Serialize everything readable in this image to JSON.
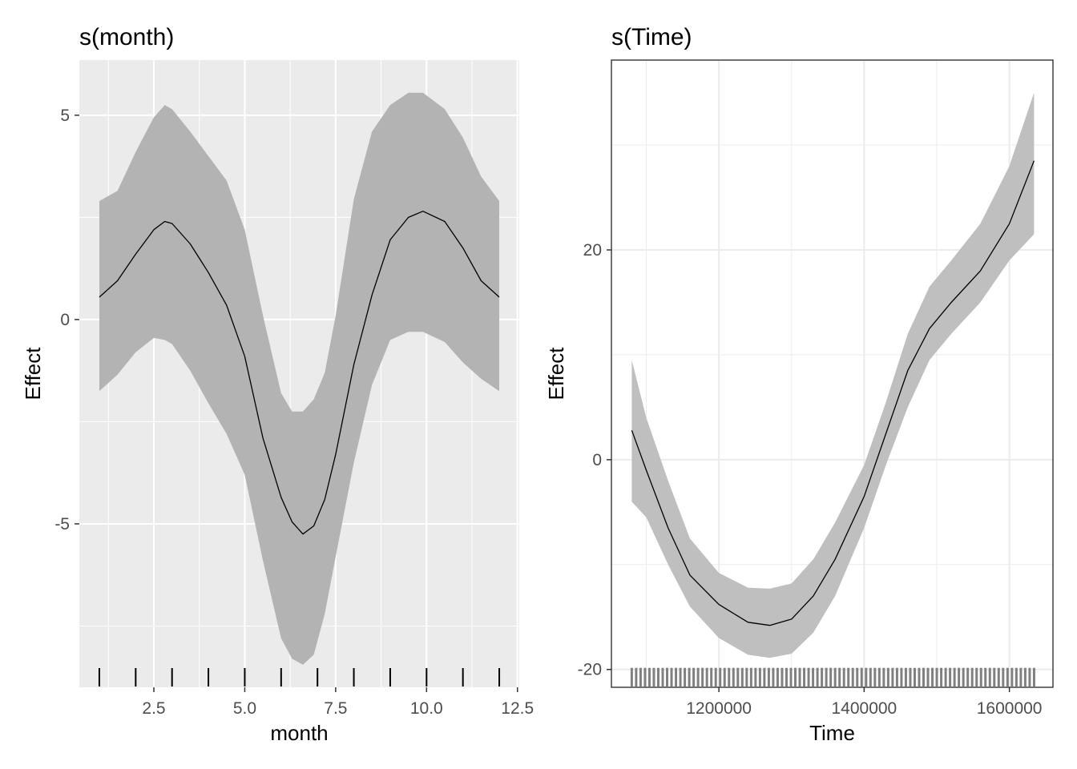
{
  "chart_data": [
    {
      "type": "line",
      "title": "s(month)",
      "xlabel": "month",
      "ylabel": "Effect",
      "xlim": [
        0.45,
        12.55
      ],
      "ylim": [
        -9.0,
        6.35
      ],
      "xticks": [
        2.5,
        5.0,
        7.5,
        10.0,
        12.5
      ],
      "xtick_labels": [
        "2.5",
        "5.0",
        "7.5",
        "10.0",
        "12.5"
      ],
      "yticks": [
        -5,
        0,
        5
      ],
      "ytick_labels": [
        "-5",
        "0",
        "5"
      ],
      "grid": true,
      "background": "gray",
      "colors": {
        "panel": "#ebebeb",
        "band": "#b3b3b3",
        "line": "#000000",
        "grid": "#ffffff"
      },
      "series": [
        {
          "x": [
            1,
            1.5,
            2,
            2.5,
            2.8,
            3,
            3.5,
            4,
            4.5,
            5,
            5.5,
            6,
            6.3,
            6.6,
            6.9,
            7.2,
            7.5,
            8,
            8.5,
            9,
            9.5,
            9.9,
            10.5,
            11,
            11.5,
            12
          ],
          "y": [
            0.55,
            0.95,
            1.6,
            2.2,
            2.4,
            2.35,
            1.85,
            1.15,
            0.35,
            -0.9,
            -2.9,
            -4.35,
            -4.95,
            -5.25,
            -5.05,
            -4.4,
            -3.3,
            -1.1,
            0.6,
            1.95,
            2.5,
            2.65,
            2.4,
            1.75,
            0.95,
            0.55
          ],
          "lower": [
            -1.75,
            -1.35,
            -0.8,
            -0.45,
            -0.5,
            -0.6,
            -1.25,
            -2.05,
            -2.8,
            -3.8,
            -5.9,
            -7.8,
            -8.3,
            -8.45,
            -8.2,
            -7.2,
            -5.8,
            -3.5,
            -1.6,
            -0.5,
            -0.3,
            -0.3,
            -0.55,
            -1.05,
            -1.45,
            -1.75
          ],
          "upper": [
            2.9,
            3.15,
            4.1,
            4.95,
            5.25,
            5.15,
            4.6,
            4.0,
            3.4,
            2.2,
            0.1,
            -1.8,
            -2.25,
            -2.25,
            -1.95,
            -1.3,
            0.1,
            2.95,
            4.6,
            5.25,
            5.55,
            5.55,
            5.15,
            4.45,
            3.5,
            2.9
          ]
        }
      ],
      "rug": [
        1,
        2,
        3,
        4,
        5,
        6,
        7,
        8,
        9,
        10,
        11,
        12
      ]
    },
    {
      "type": "line",
      "title": "s(Time)",
      "xlabel": "Time",
      "ylabel": "Effect",
      "xlim": [
        1052000,
        1660000
      ],
      "ylim": [
        -21.7,
        38.1
      ],
      "xticks": [
        1200000,
        1400000,
        1600000
      ],
      "xtick_labels": [
        "1200000",
        "1400000",
        "1600000"
      ],
      "yticks": [
        -20,
        0,
        20
      ],
      "ytick_labels": [
        "-20",
        "0",
        "20"
      ],
      "grid": true,
      "background": "white",
      "colors": {
        "panel": "#ffffff",
        "band": "#bfbfbf",
        "line": "#000000",
        "grid": "#ebebeb",
        "border": "#333333",
        "rug": "#808080"
      },
      "series": [
        {
          "x": [
            1080000,
            1100000,
            1130000,
            1160000,
            1200000,
            1240000,
            1270000,
            1300000,
            1330000,
            1360000,
            1400000,
            1430000,
            1460000,
            1490000,
            1520000,
            1560000,
            1600000,
            1634000
          ],
          "y": [
            2.8,
            -1.0,
            -6.5,
            -11.0,
            -13.8,
            -15.5,
            -15.8,
            -15.2,
            -13.0,
            -9.5,
            -3.5,
            2.5,
            8.5,
            12.5,
            15.0,
            18.0,
            22.5,
            28.5
          ],
          "lower": [
            -4.0,
            -5.5,
            -10.0,
            -14.0,
            -17.0,
            -18.6,
            -18.9,
            -18.5,
            -16.5,
            -13.0,
            -6.5,
            -0.5,
            5.0,
            9.5,
            12.0,
            15.0,
            19.0,
            21.5
          ],
          "upper": [
            9.5,
            4.0,
            -2.0,
            -7.5,
            -10.8,
            -12.2,
            -12.3,
            -11.8,
            -9.5,
            -6.0,
            -0.5,
            5.5,
            12.0,
            16.5,
            19.0,
            22.5,
            28.0,
            35.0
          ]
        }
      ],
      "rug_range": [
        1080000,
        1634000
      ],
      "rug_count": 92
    }
  ]
}
